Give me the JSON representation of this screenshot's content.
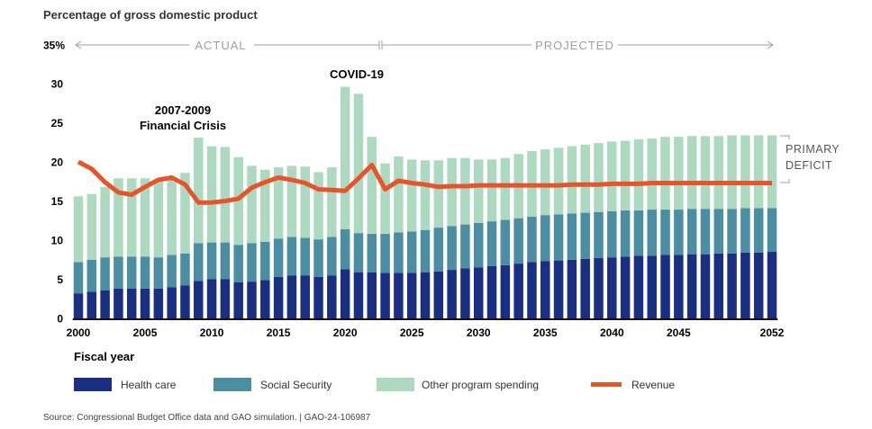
{
  "chart_data": {
    "type": "bar",
    "stacked": true,
    "title": "Percentage of gross domestic product",
    "xlabel": "Fiscal year",
    "ylabel": "",
    "ylim": [
      0,
      35
    ],
    "y_ticks": [
      "0",
      "5",
      "10",
      "15",
      "20",
      "25",
      "30",
      "35%"
    ],
    "x_ticks": [
      "2000",
      "2005",
      "2010",
      "2015",
      "2020",
      "2025",
      "2030",
      "2035",
      "2040",
      "2045",
      "2052"
    ],
    "grid": false,
    "legend_position": "bottom",
    "periods": {
      "actual": "ACTUAL",
      "projected": "PROJECTED"
    },
    "annotations": {
      "crisis_line1": "2007-2009",
      "crisis_line2": "Financial Crisis",
      "covid": "COVID-19",
      "deficit_line1": "PRIMARY",
      "deficit_line2": "DEFICIT"
    },
    "x": [
      2000,
      2001,
      2002,
      2003,
      2004,
      2005,
      2006,
      2007,
      2008,
      2009,
      2010,
      2011,
      2012,
      2013,
      2014,
      2015,
      2016,
      2017,
      2018,
      2019,
      2020,
      2021,
      2022,
      2023,
      2024,
      2025,
      2026,
      2027,
      2028,
      2029,
      2030,
      2031,
      2032,
      2033,
      2034,
      2035,
      2036,
      2037,
      2038,
      2039,
      2040,
      2041,
      2042,
      2043,
      2044,
      2045,
      2046,
      2047,
      2048,
      2049,
      2050,
      2051,
      2052
    ],
    "series": [
      {
        "name": "Health care",
        "kind": "bar",
        "color": "#1b2f82",
        "values": [
          3.2,
          3.4,
          3.6,
          3.8,
          3.8,
          3.8,
          3.8,
          4.0,
          4.2,
          4.8,
          5.0,
          5.0,
          4.6,
          4.7,
          4.9,
          5.3,
          5.5,
          5.5,
          5.3,
          5.5,
          6.3,
          5.9,
          5.9,
          5.8,
          5.8,
          5.8,
          5.9,
          6.0,
          6.2,
          6.4,
          6.5,
          6.7,
          6.8,
          7.0,
          7.2,
          7.3,
          7.4,
          7.5,
          7.6,
          7.7,
          7.8,
          7.9,
          8.0,
          8.0,
          8.1,
          8.1,
          8.2,
          8.2,
          8.3,
          8.3,
          8.4,
          8.4,
          8.5
        ]
      },
      {
        "name": "Social Security",
        "kind": "bar",
        "color": "#4b8da1",
        "values": [
          4.0,
          4.1,
          4.2,
          4.1,
          4.1,
          4.1,
          4.0,
          4.1,
          4.1,
          4.8,
          4.7,
          4.7,
          4.8,
          4.9,
          4.9,
          4.9,
          4.9,
          4.8,
          4.8,
          4.9,
          5.1,
          5.0,
          4.9,
          5.0,
          5.2,
          5.3,
          5.4,
          5.6,
          5.6,
          5.6,
          5.7,
          5.7,
          5.8,
          5.8,
          5.8,
          5.9,
          5.9,
          5.9,
          5.9,
          5.9,
          5.9,
          5.9,
          5.8,
          5.9,
          5.8,
          5.8,
          5.8,
          5.8,
          5.7,
          5.7,
          5.7,
          5.7,
          5.6
        ]
      },
      {
        "name": "Other program spending",
        "kind": "bar",
        "color": "#acd9bf",
        "values": [
          8.4,
          8.4,
          9.0,
          10.0,
          10.0,
          10.0,
          9.9,
          9.9,
          10.3,
          13.5,
          12.3,
          12.2,
          11.2,
          9.9,
          9.2,
          9.1,
          9.1,
          9.1,
          8.6,
          8.9,
          18.2,
          17.8,
          12.4,
          9.0,
          9.7,
          9.2,
          8.9,
          8.6,
          8.7,
          8.5,
          8.1,
          7.9,
          7.9,
          8.2,
          8.4,
          8.4,
          8.5,
          8.6,
          8.7,
          8.8,
          8.9,
          8.9,
          9.1,
          9.1,
          9.3,
          9.3,
          9.3,
          9.3,
          9.3,
          9.4,
          9.3,
          9.3,
          9.3
        ]
      },
      {
        "name": "Revenue",
        "kind": "line",
        "color": "#e8542a",
        "values": [
          20.0,
          19.1,
          17.4,
          16.1,
          15.8,
          16.8,
          17.7,
          18.0,
          17.1,
          14.8,
          14.8,
          15.0,
          15.3,
          16.7,
          17.4,
          18.0,
          17.7,
          17.3,
          16.5,
          16.4,
          16.3,
          17.9,
          19.6,
          16.5,
          17.6,
          17.3,
          17.1,
          16.8,
          16.9,
          16.9,
          17.0,
          17.0,
          17.0,
          17.0,
          17.0,
          17.0,
          17.0,
          17.1,
          17.1,
          17.1,
          17.2,
          17.2,
          17.2,
          17.3,
          17.3,
          17.3,
          17.3,
          17.3,
          17.3,
          17.3,
          17.3,
          17.3,
          17.3
        ]
      }
    ],
    "source": "Source: Congressional Budget Office data and GAO simulation.  |  GAO-24-106987"
  }
}
